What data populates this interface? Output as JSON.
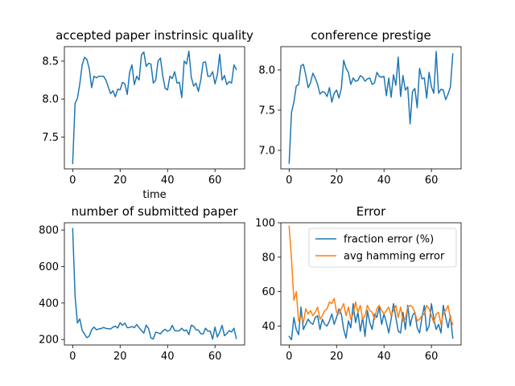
{
  "chart_data": [
    {
      "type": "line",
      "title": "accepted paper instrinsic quality",
      "xlabel": "time",
      "ylabel": "",
      "xlim": [
        -3.5,
        72.5
      ],
      "ylim": [
        7.08,
        8.69
      ],
      "xticks": [
        0,
        20,
        40,
        60
      ],
      "yticks": [
        7.5,
        8.0,
        8.5
      ],
      "ytick_labels": [
        "7.5",
        "8.0",
        "8.5"
      ],
      "color": "#1f77b4",
      "series": [
        {
          "values": [
            7.15,
            7.94,
            8.01,
            8.2,
            8.45,
            8.55,
            8.52,
            8.4,
            8.15,
            8.3,
            8.28,
            8.3,
            8.3,
            8.3,
            8.25,
            8.16,
            8.07,
            8.11,
            8.03,
            8.13,
            8.12,
            8.22,
            8.2,
            8.06,
            8.35,
            8.45,
            8.19,
            8.3,
            8.25,
            8.58,
            8.62,
            8.43,
            8.47,
            8.46,
            8.21,
            8.25,
            8.5,
            8.54,
            8.3,
            8.14,
            8.12,
            8.3,
            8.27,
            8.36,
            8.21,
            8.22,
            8.02,
            8.5,
            8.46,
            8.63,
            8.29,
            8.17,
            8.21,
            8.1,
            8.25,
            8.48,
            8.49,
            8.3,
            8.3,
            8.36,
            8.2,
            8.32,
            8.59,
            8.25,
            8.31,
            8.19,
            8.23,
            8.21,
            8.45,
            8.39
          ]
        }
      ]
    },
    {
      "type": "line",
      "title": "conference prestige",
      "xlabel": "",
      "ylabel": "",
      "xlim": [
        -3.5,
        72.5
      ],
      "ylim": [
        6.77,
        8.29
      ],
      "xticks": [
        0,
        20,
        40,
        60
      ],
      "yticks": [
        7.0,
        7.5,
        8.0
      ],
      "ytick_labels": [
        "7.0",
        "7.5",
        "8.0"
      ],
      "color": "#1f77b4",
      "series": [
        {
          "values": [
            6.84,
            7.47,
            7.6,
            7.8,
            7.82,
            8.05,
            8.07,
            7.94,
            7.78,
            7.84,
            7.96,
            7.9,
            7.82,
            7.7,
            7.73,
            7.72,
            7.67,
            7.78,
            7.6,
            7.71,
            7.75,
            7.65,
            7.77,
            8.12,
            8.02,
            7.97,
            7.82,
            7.9,
            7.86,
            7.87,
            7.93,
            7.91,
            7.86,
            7.89,
            7.9,
            7.82,
            7.84,
            7.97,
            7.92,
            7.91,
            7.92,
            7.68,
            7.9,
            7.66,
            7.94,
            7.81,
            8.16,
            7.67,
            7.93,
            7.75,
            7.79,
            7.33,
            7.73,
            7.77,
            7.53,
            8.02,
            7.89,
            7.9,
            7.65,
            7.97,
            7.79,
            7.71,
            8.23,
            7.71,
            7.76,
            7.75,
            7.63,
            7.7,
            7.79,
            8.2
          ]
        }
      ]
    },
    {
      "type": "line",
      "title": "number of submitted paper",
      "xlabel": "",
      "ylabel": "",
      "xlim": [
        -3.5,
        72.5
      ],
      "ylim": [
        170,
        840
      ],
      "xticks": [
        0,
        20,
        40,
        60
      ],
      "yticks": [
        200,
        400,
        600,
        800
      ],
      "ytick_labels": [
        "200",
        "400",
        "600",
        "800"
      ],
      "color": "#1f77b4",
      "series": [
        {
          "values": [
            808,
            440,
            290,
            313,
            250,
            230,
            210,
            219,
            254,
            268,
            253,
            258,
            260,
            266,
            261,
            259,
            258,
            268,
            273,
            263,
            292,
            278,
            290,
            265,
            266,
            271,
            265,
            282,
            265,
            249,
            235,
            279,
            260,
            208,
            203,
            240,
            237,
            231,
            247,
            256,
            245,
            251,
            278,
            249,
            247,
            248,
            262,
            247,
            253,
            227,
            278,
            273,
            253,
            252,
            232,
            230,
            262,
            246,
            246,
            202,
            268,
            214,
            240,
            278,
            221,
            232,
            249,
            241,
            262,
            206
          ]
        }
      ]
    },
    {
      "type": "line",
      "title": "Error",
      "xlabel": "",
      "ylabel": "",
      "xlim": [
        -3.5,
        72.5
      ],
      "ylim": [
        29,
        100
      ],
      "xticks": [
        0,
        20,
        40,
        60
      ],
      "yticks": [
        40,
        60,
        80,
        100
      ],
      "ytick_labels": [
        "40",
        "60",
        "80",
        "100"
      ],
      "legend": "top-right",
      "series": [
        {
          "name": "fraction error (%)",
          "color": "#1f77b4",
          "values": [
            34,
            32,
            45,
            38,
            35,
            51,
            38,
            41,
            44,
            42,
            41,
            45,
            46,
            38,
            44,
            41,
            40,
            43,
            47,
            41,
            45,
            50,
            47,
            38,
            33,
            43,
            39,
            53,
            42,
            48,
            37,
            45,
            34,
            49,
            42,
            38,
            47,
            45,
            51,
            41,
            47,
            42,
            36,
            44,
            53,
            45,
            37,
            36,
            48,
            38,
            52,
            40,
            46,
            48,
            39,
            36,
            45,
            52,
            37,
            40,
            53,
            44,
            38,
            41,
            36,
            52,
            45,
            39,
            46,
            33
          ]
        },
        {
          "name": "avg hamming error",
          "color": "#ff7f0e",
          "values": [
            98,
            79,
            55,
            60,
            43,
            46,
            42,
            50,
            47,
            49,
            46,
            48,
            51,
            44,
            46,
            49,
            50,
            54,
            53,
            56,
            48,
            47,
            50,
            53,
            46,
            51,
            44,
            47,
            54,
            48,
            52,
            44,
            46,
            52,
            49,
            48,
            44,
            50,
            52,
            49,
            47,
            49,
            51,
            46,
            49,
            52,
            45,
            51,
            43,
            44,
            51,
            52,
            51,
            48,
            43,
            44,
            46,
            47,
            52,
            50,
            46,
            42,
            47,
            48,
            41,
            47,
            49,
            52,
            44,
            41
          ]
        }
      ]
    }
  ]
}
